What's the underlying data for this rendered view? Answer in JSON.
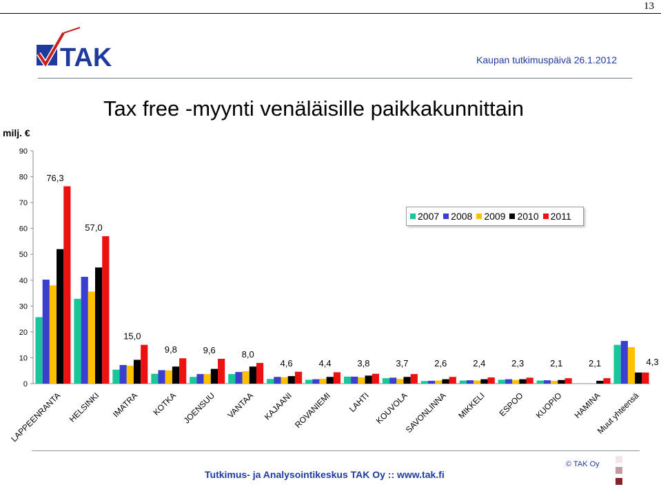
{
  "page": {
    "number": "13"
  },
  "header": {
    "event": "Kaupan tutkimuspäivä 26.1.2012",
    "logo_text": "TAK"
  },
  "footer": {
    "text": "Tutkimus- ja Analysointikeskus TAK Oy  ::  www.tak.fi",
    "copyright": "© TAK Oy"
  },
  "colors": {
    "accent": "#1f3a9e",
    "decor_squares": [
      "#f2e6ea",
      "#c49aa2",
      "#8a1f2b"
    ]
  },
  "chart_data": {
    "type": "bar",
    "title": "Tax free -myynti venäläisille paikkakunnittain",
    "ylabel": "milj. €",
    "xlabel": "",
    "ylim": [
      0,
      90
    ],
    "yticks": [
      0,
      10,
      20,
      30,
      40,
      50,
      60,
      70,
      80,
      90
    ],
    "grid": false,
    "legend_position": "top-right",
    "categories": [
      "LAPPEENRANTA",
      "HELSINKI",
      "IMATRA",
      "KOTKA",
      "JOENSUU",
      "VANTAA",
      "KAJAANI",
      "ROVANIEMI",
      "LAHTI",
      "KOUVOLA",
      "SAVONLINNA",
      "MIKKELI",
      "ESPOO",
      "KUOPIO",
      "HAMINA",
      "Muut yhteensä"
    ],
    "series": [
      {
        "name": "2007",
        "color": "#19c69a",
        "values": [
          25.7,
          32.8,
          5.4,
          3.8,
          2.6,
          3.7,
          1.8,
          1.5,
          2.7,
          2.1,
          1.0,
          1.2,
          1.5,
          1.2,
          0.0,
          15.0
        ]
      },
      {
        "name": "2008",
        "color": "#3a3fcf",
        "values": [
          40.2,
          41.3,
          7.2,
          5.2,
          3.7,
          4.5,
          2.6,
          1.7,
          2.7,
          2.3,
          1.1,
          1.3,
          1.7,
          1.3,
          0.0,
          16.5
        ]
      },
      {
        "name": "2009",
        "color": "#ffc000",
        "values": [
          38.0,
          35.6,
          6.9,
          5.1,
          3.7,
          4.8,
          2.5,
          1.9,
          2.4,
          1.8,
          1.2,
          1.2,
          1.4,
          1.1,
          0.0,
          14.1
        ]
      },
      {
        "name": "2010",
        "color": "#000000",
        "values": [
          52.0,
          44.9,
          9.2,
          6.6,
          5.7,
          6.6,
          2.9,
          2.6,
          3.1,
          2.6,
          1.7,
          1.7,
          1.7,
          1.4,
          1.1,
          4.3
        ]
      },
      {
        "name": "2011",
        "color": "#ee1111",
        "values": [
          76.3,
          57.0,
          15.0,
          9.8,
          9.6,
          8.0,
          4.6,
          4.4,
          3.8,
          3.7,
          2.6,
          2.4,
          2.3,
          2.1,
          2.1,
          4.3
        ]
      }
    ],
    "data_labels": [
      "76,3",
      "57,0",
      "15,0",
      "9,8",
      "9,6",
      "8,0",
      "4,6",
      "4,4",
      "3,8",
      "3,7",
      "2,6",
      "2,4",
      "2,3",
      "2,1",
      "2,1",
      "4,3"
    ]
  }
}
